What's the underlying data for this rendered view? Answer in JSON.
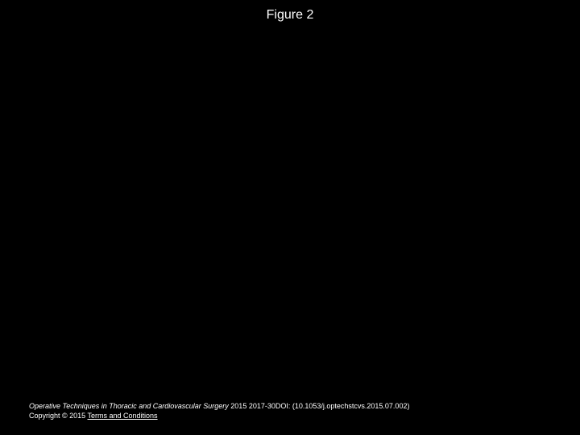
{
  "slide": {
    "title": "Figure 2",
    "background_color": "#000000",
    "text_color": "#ffffff"
  },
  "footer": {
    "journal": "Operative Techniques in Thoracic and Cardiovascular Surgery",
    "citation_tail": " 2015 2017-30DOI: (10.1053/j.optechstcvs.2015.07.002)",
    "copyright": "Copyright © 2015 ",
    "terms_label": "Terms and Conditions"
  }
}
